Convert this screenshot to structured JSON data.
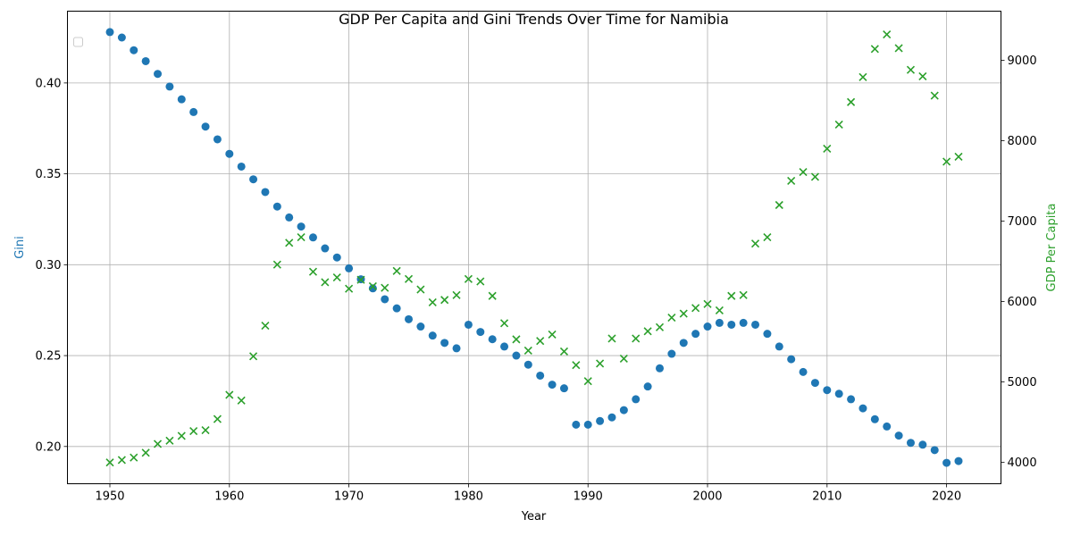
{
  "chart_data": {
    "type": "scatter",
    "title": "GDP Per Capita and Gini Trends Over Time for Namibia",
    "xlabel": "Year",
    "ylabel_left": "Gini",
    "ylabel_right": "GDP Per Capita",
    "xlim": [
      1946.45,
      2024.55
    ],
    "ylim_left": [
      0.1795,
      0.4395
    ],
    "ylim_right": [
      3735,
      9610
    ],
    "x_ticks": [
      1950,
      1960,
      1970,
      1980,
      1990,
      2000,
      2010,
      2020
    ],
    "y_ticks_left": [
      0.2,
      0.25,
      0.3,
      0.35,
      0.4
    ],
    "y_ticks_left_labels": [
      "0.20",
      "0.25",
      "0.30",
      "0.35",
      "0.40"
    ],
    "y_ticks_right": [
      4000,
      5000,
      6000,
      7000,
      8000,
      9000
    ],
    "grid": true,
    "legend": "top-left (empty)",
    "colors": {
      "gini": "#1f77b4",
      "gdp": "#2ca02c"
    },
    "series": [
      {
        "axis": "left",
        "marker": "circle",
        "x": [
          1950,
          1951,
          1952,
          1953,
          1954,
          1955,
          1956,
          1957,
          1958,
          1959,
          1960,
          1961,
          1962,
          1963,
          1964,
          1965,
          1966,
          1967,
          1968,
          1969,
          1970,
          1971,
          1972,
          1973,
          1974,
          1975,
          1976,
          1977,
          1978,
          1979,
          1980,
          1981,
          1982,
          1983,
          1984,
          1985,
          1986,
          1987,
          1988,
          1989,
          1990,
          1991,
          1992,
          1993,
          1994,
          1995,
          1996,
          1997,
          1998,
          1999,
          2000,
          2001,
          2002,
          2003,
          2004,
          2005,
          2006,
          2007,
          2008,
          2009,
          2010,
          2011,
          2012,
          2013,
          2014,
          2015,
          2016,
          2017,
          2018,
          2019,
          2020,
          2021
        ],
        "values": [
          0.428,
          0.425,
          0.418,
          0.412,
          0.405,
          0.398,
          0.391,
          0.384,
          0.376,
          0.369,
          0.361,
          0.354,
          0.347,
          0.34,
          0.332,
          0.326,
          0.321,
          0.315,
          0.309,
          0.304,
          0.298,
          0.292,
          0.287,
          0.281,
          0.276,
          0.27,
          0.266,
          0.261,
          0.257,
          0.254,
          0.267,
          0.263,
          0.259,
          0.255,
          0.25,
          0.245,
          0.239,
          0.234,
          0.232,
          0.212,
          0.212,
          0.214,
          0.216,
          0.22,
          0.226,
          0.233,
          0.243,
          0.251,
          0.257,
          0.262,
          0.266,
          0.268,
          0.267,
          0.268,
          0.267,
          0.262,
          0.255,
          0.248,
          0.241,
          0.235,
          0.231,
          0.229,
          0.226,
          0.221,
          0.215,
          0.211,
          0.206,
          0.202,
          0.201,
          0.198,
          0.191,
          0.192
        ]
      },
      {
        "axis": "right",
        "marker": "x",
        "x": [
          1950,
          1951,
          1952,
          1953,
          1954,
          1955,
          1956,
          1957,
          1958,
          1959,
          1960,
          1961,
          1962,
          1963,
          1964,
          1965,
          1966,
          1967,
          1968,
          1969,
          1970,
          1971,
          1972,
          1973,
          1974,
          1975,
          1976,
          1977,
          1978,
          1979,
          1980,
          1981,
          1982,
          1983,
          1984,
          1985,
          1986,
          1987,
          1988,
          1989,
          1990,
          1991,
          1992,
          1993,
          1994,
          1995,
          1996,
          1997,
          1998,
          1999,
          2000,
          2001,
          2002,
          2003,
          2004,
          2005,
          2006,
          2007,
          2008,
          2009,
          2010,
          2011,
          2012,
          2013,
          2014,
          2015,
          2016,
          2017,
          2018,
          2019,
          2020,
          2021
        ],
        "values": [
          4000,
          4030,
          4060,
          4120,
          4230,
          4270,
          4330,
          4390,
          4400,
          4540,
          4840,
          4770,
          5320,
          5700,
          6460,
          6730,
          6800,
          6370,
          6240,
          6300,
          6160,
          6270,
          6190,
          6170,
          6380,
          6280,
          6150,
          5990,
          6020,
          6080,
          6280,
          6250,
          6070,
          5730,
          5530,
          5390,
          5510,
          5590,
          5380,
          5210,
          5010,
          5230,
          5540,
          5290,
          5540,
          5630,
          5680,
          5800,
          5850,
          5920,
          5970,
          5890,
          6070,
          6080,
          6720,
          6800,
          7200,
          7500,
          7610,
          7550,
          7900,
          8200,
          8480,
          8790,
          9140,
          9320,
          9150,
          8880,
          8800,
          8560,
          7740,
          7800
        ]
      }
    ]
  }
}
